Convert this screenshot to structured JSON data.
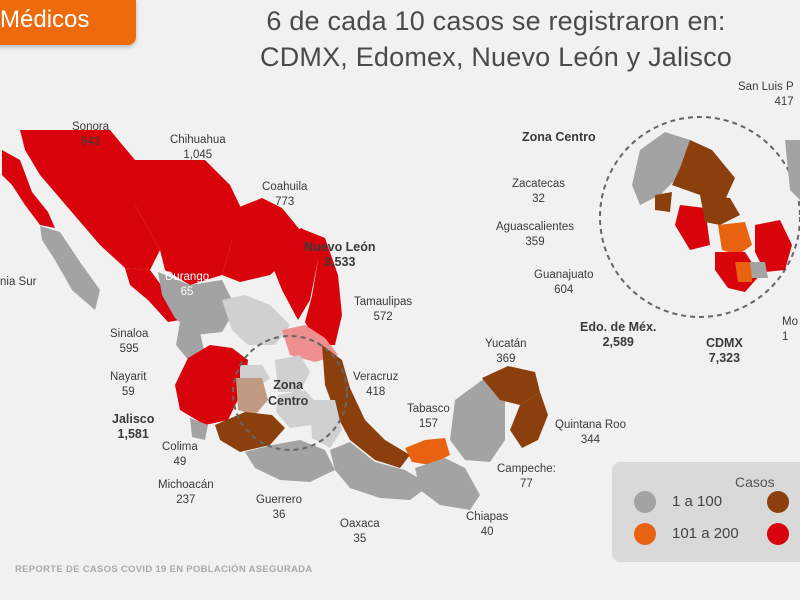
{
  "badge": {
    "label": "Médicos"
  },
  "headline": {
    "line1": "6 de cada 10 casos se registraron en:",
    "line2": "CDMX, Edomex, Nuevo León y Jalisco"
  },
  "colors": {
    "gray": "#a3a3a3",
    "orange": "#e8620f",
    "brown": "#8b3f0c",
    "red": "#d9040b",
    "light": "#d0d0d0",
    "accent": "#ee6b0c"
  },
  "states": {
    "sonora": {
      "name": "Sonora",
      "value": "643"
    },
    "chihuahua": {
      "name": "Chihuahua",
      "value": "1,045"
    },
    "coahuila": {
      "name": "Coahuila",
      "value": "773"
    },
    "nuevo_leon": {
      "name": "Nuevo León",
      "value": "3,533"
    },
    "tamaulipas": {
      "name": "Tamaulipas",
      "value": "572"
    },
    "durango": {
      "name": "Durango",
      "value": "65"
    },
    "sinaloa": {
      "name": "Sinaloa",
      "value": "595"
    },
    "nayarit": {
      "name": "Nayarit",
      "value": "59"
    },
    "jalisco": {
      "name": "Jalisco",
      "value": "1,581"
    },
    "colima": {
      "name": "Colima",
      "value": "49"
    },
    "michoacan": {
      "name": "Michoacán",
      "value": "237"
    },
    "guerrero": {
      "name": "Guerrero",
      "value": "36"
    },
    "oaxaca": {
      "name": "Oaxaca",
      "value": "35"
    },
    "chiapas": {
      "name": "Chiapas",
      "value": "40"
    },
    "campeche": {
      "name": "Campeche:",
      "value": "77"
    },
    "quintana_roo": {
      "name": "Quintana Roo",
      "value": "344"
    },
    "yucatan": {
      "name": "Yucatán",
      "value": "369"
    },
    "tabasco": {
      "name": "Tabasco",
      "value": "157"
    },
    "veracruz": {
      "name": "Veracruz",
      "value": "418"
    },
    "baja_california_sur": {
      "name": "nia Sur"
    },
    "zona_centro_map": {
      "name": "Zona\nCentro"
    },
    "zacatecas": {
      "name": "Zacatecas",
      "value": "32"
    },
    "aguascalientes": {
      "name": "Aguascalientes",
      "value": "359"
    },
    "guanajuato": {
      "name": "Guanajuato",
      "value": "604"
    },
    "edomex": {
      "name": "Edo. de Méx.",
      "value": "2,589"
    },
    "cdmx": {
      "name": "CDMX",
      "value": "7,323"
    },
    "san_luis": {
      "name": "San Luis P",
      "value": "417"
    },
    "morelos": {
      "name": "Mo",
      "value": "1"
    }
  },
  "inset": {
    "title": "Zona Centro"
  },
  "legend": {
    "title": "Casos",
    "items": [
      "1 a 100",
      "101 a 200"
    ]
  },
  "footer": "REPORTE DE CASOS COVID 19 EN POBLACIÓN ASEGURADA"
}
